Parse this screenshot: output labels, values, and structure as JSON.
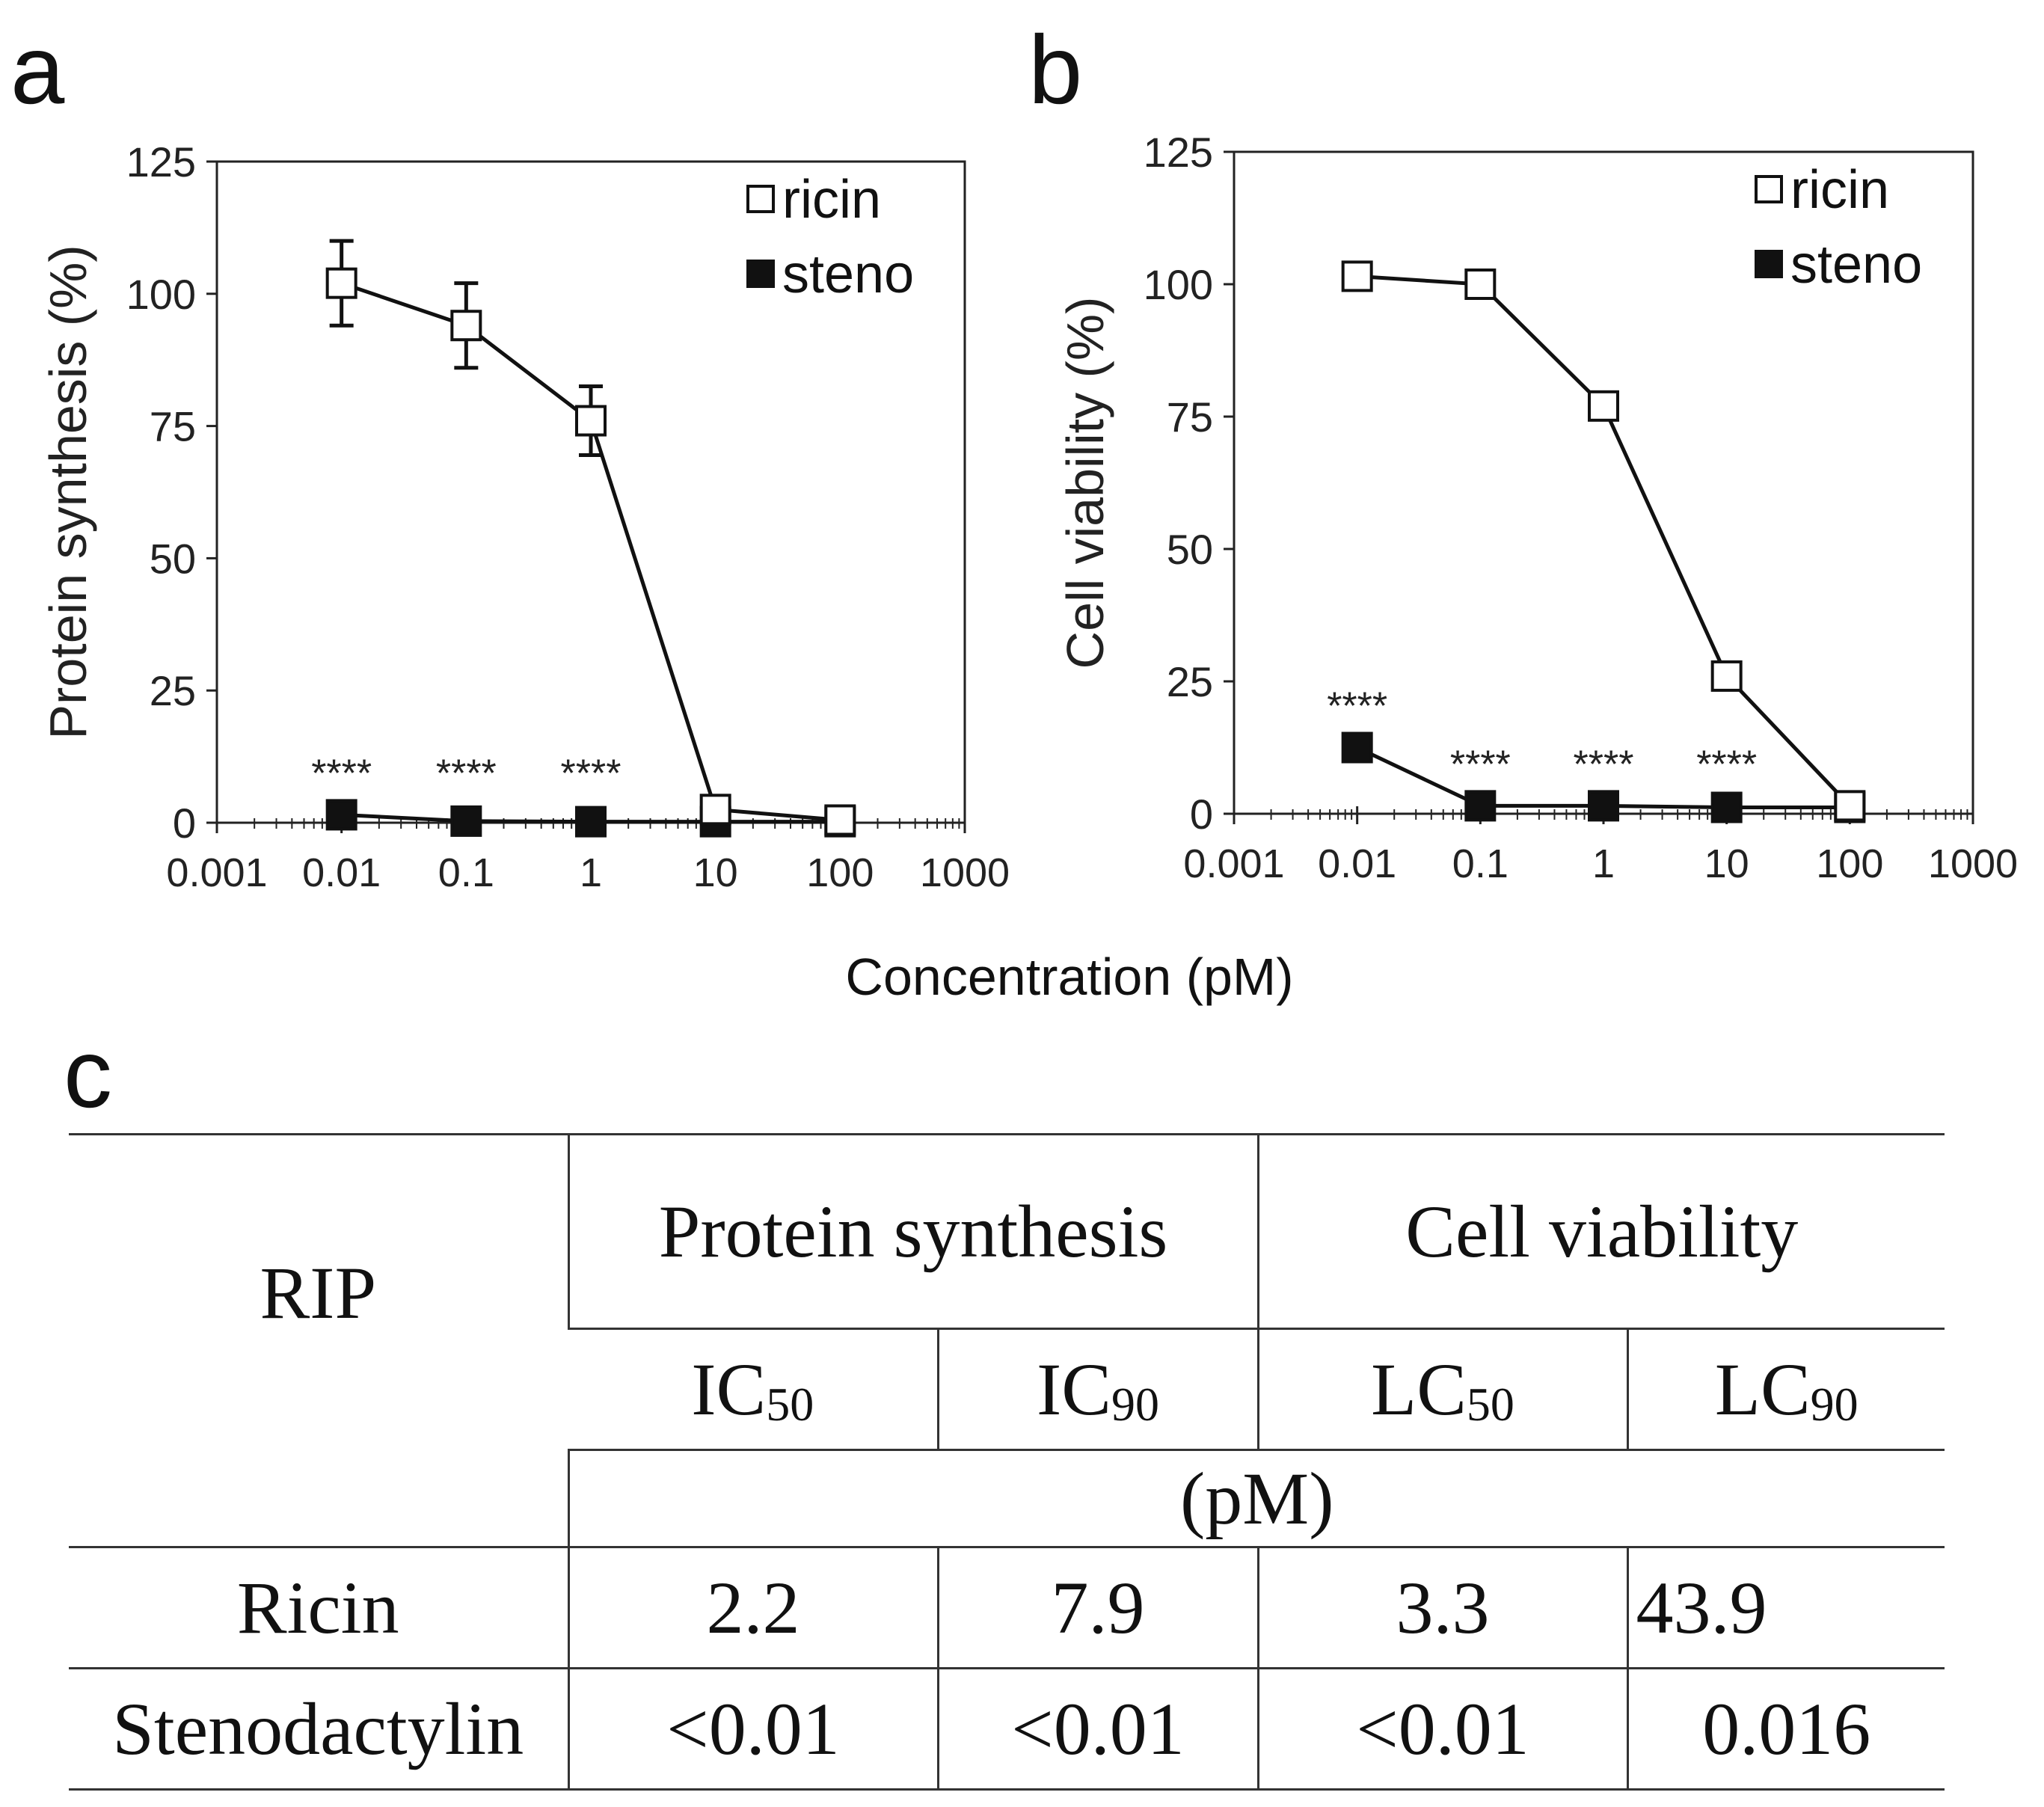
{
  "panels": {
    "a": "a",
    "b": "b",
    "c": "c"
  },
  "shared_xlabel": "Concentration (pM)",
  "chart_data": [
    {
      "type": "line",
      "panel": "a",
      "xscale": "log",
      "xlim": [
        0.001,
        1000
      ],
      "ylim": [
        0,
        125
      ],
      "xticks": [
        "0.001",
        "0.01",
        "0.1",
        "1",
        "10",
        "100",
        "1000"
      ],
      "xtick_values": [
        0.001,
        0.01,
        0.1,
        1,
        10,
        100,
        1000
      ],
      "yticks": [
        0,
        25,
        50,
        75,
        100,
        125
      ],
      "ylabel": "Protein synthesis (%)",
      "legend_position": "top-right",
      "series": [
        {
          "name": "ricin",
          "marker": "open-square",
          "x": [
            0.01,
            0.1,
            1,
            10,
            100
          ],
          "y": [
            102,
            94,
            76,
            2.5,
            0.5
          ],
          "err": [
            8,
            8,
            6.5,
            0,
            0
          ]
        },
        {
          "name": "steno",
          "marker": "filled-square",
          "x": [
            0.01,
            0.1,
            1,
            10,
            100
          ],
          "y": [
            1.5,
            0.3,
            0.2,
            0.2,
            0.2
          ],
          "err": [
            0,
            0,
            0,
            0,
            0
          ]
        }
      ],
      "annotations": [
        {
          "text": "****",
          "x": 0.01,
          "y": 8
        },
        {
          "text": "****",
          "x": 0.1,
          "y": 8
        },
        {
          "text": "****",
          "x": 1,
          "y": 8
        }
      ]
    },
    {
      "type": "line",
      "panel": "b",
      "xscale": "log",
      "xlim": [
        0.001,
        1000
      ],
      "ylim": [
        0,
        125
      ],
      "xticks": [
        "0.001",
        "0.01",
        "0.1",
        "1",
        "10",
        "100",
        "1000"
      ],
      "xtick_values": [
        0.001,
        0.01,
        0.1,
        1,
        10,
        100,
        1000
      ],
      "yticks": [
        0,
        25,
        50,
        75,
        100,
        125
      ],
      "ylabel": "Cell viability (%)",
      "legend_position": "top-right",
      "series": [
        {
          "name": "ricin",
          "marker": "open-square",
          "x": [
            0.01,
            0.1,
            1,
            10,
            100
          ],
          "y": [
            101.5,
            100,
            77,
            26,
            1.5
          ],
          "err": [
            0,
            0,
            0,
            0,
            0
          ]
        },
        {
          "name": "steno",
          "marker": "filled-square",
          "x": [
            0.01,
            0.1,
            1,
            10,
            100
          ],
          "y": [
            12.5,
            1.5,
            1.5,
            1.2,
            1.2
          ],
          "err": [
            0,
            0,
            0,
            0,
            0
          ]
        }
      ],
      "annotations": [
        {
          "text": "****",
          "x": 0.01,
          "y": 19
        },
        {
          "text": "****",
          "x": 0.1,
          "y": 8
        },
        {
          "text": "****",
          "x": 1,
          "y": 8
        },
        {
          "text": "****",
          "x": 10,
          "y": 8
        }
      ]
    },
    {
      "type": "table",
      "panel": "c",
      "header": {
        "rip": "RIP",
        "protein_synthesis": "Protein synthesis",
        "cell_viability": "Cell viability",
        "ic50_base": "IC",
        "ic50_sub": "50",
        "ic90_base": "IC",
        "ic90_sub": "90",
        "lc50_base": "LC",
        "lc50_sub": "50",
        "lc90_base": "LC",
        "lc90_sub": "90",
        "unit": "(pM)"
      },
      "rows": [
        {
          "name": "Ricin",
          "ic50": "2.2",
          "ic90": "7.9",
          "lc50": "3.3",
          "lc90": "43.9"
        },
        {
          "name": "Stenodactylin",
          "ic50": "<0.01",
          "ic90": "<0.01",
          "lc50": "<0.01",
          "lc90": "0.016"
        }
      ]
    }
  ]
}
